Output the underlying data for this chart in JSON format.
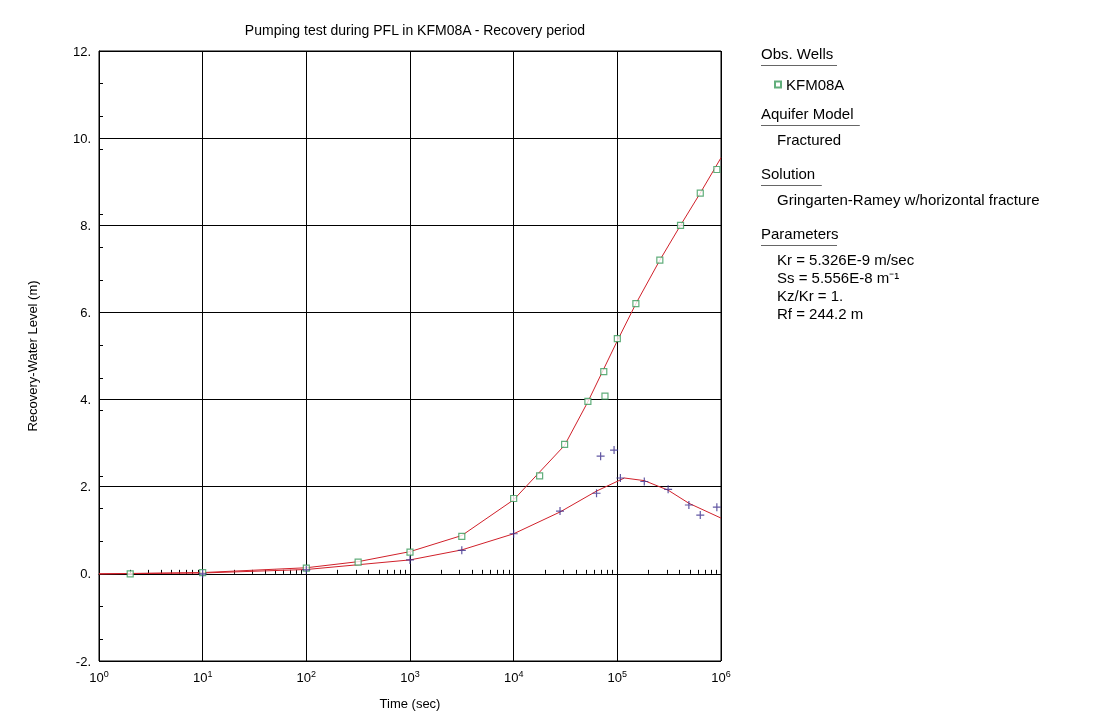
{
  "chart_data": {
    "type": "scatter",
    "title": "Pumping test during PFL in KFM08A - Recovery period",
    "xlabel": "Time (sec)",
    "ylabel": "Recovery-Water Level (m)",
    "legend_title": "Obs. Wells",
    "legend": "top right",
    "log": "x",
    "grid": true,
    "xlim": [
      1,
      1000000
    ],
    "xticks": [
      {
        "value": 1,
        "label": "10$^{0}$"
      },
      {
        "value": 10,
        "label": "10$^{1}$"
      },
      {
        "value": 100,
        "label": "10$^{2}$"
      },
      {
        "value": 1000,
        "label": "10$^{3}$"
      },
      {
        "value": 10000,
        "label": "10$^{4}$"
      },
      {
        "value": 100000,
        "label": "10$^{5}$"
      },
      {
        "value": 1000000,
        "label": "10$^{6}$"
      }
    ],
    "ylim": [
      -2,
      12
    ],
    "yticks": [
      {
        "value": -2,
        "label": "-2."
      },
      {
        "value": 0,
        "label": "0."
      },
      {
        "value": 2,
        "label": "2."
      },
      {
        "value": 4,
        "label": "4."
      },
      {
        "value": 6,
        "label": "6."
      },
      {
        "value": 8,
        "label": "8."
      },
      {
        "value": 10,
        "label": "10."
      },
      {
        "value": 12,
        "label": "12."
      }
    ],
    "series": [
      {
        "name": "KFM08A",
        "marker": "square",
        "color": "#3a9a5a",
        "x": [
          2,
          10,
          100,
          316,
          1000,
          3160,
          10000,
          17800,
          31000,
          52000,
          74000,
          76000,
          100000,
          151000,
          257000,
          407000,
          631000,
          912000
        ],
        "values": [
          0,
          0.03,
          0.13,
          0.27,
          0.5,
          0.86,
          1.73,
          2.25,
          2.97,
          3.96,
          4.64,
          4.08,
          5.4,
          6.2,
          7.2,
          8.0,
          8.74,
          9.28
        ]
      },
      {
        "marker": "cross",
        "color": "#3b2d8c",
        "x": [
          10,
          100,
          1000,
          3160,
          10000,
          28000,
          63000,
          69000,
          93000,
          107000,
          182000,
          309000,
          490000,
          631000,
          912000
        ],
        "values": [
          0,
          0.09,
          0.32,
          0.54,
          0.92,
          1.44,
          1.85,
          2.7,
          2.84,
          2.2,
          2.12,
          1.94,
          1.58,
          1.35,
          1.53
        ]
      },
      {
        "type": "line",
        "marker": "none",
        "color": "#d0202a",
        "x": [
          1,
          10,
          100,
          316,
          1000,
          3160,
          10000,
          31000,
          52000,
          100000,
          151000,
          257000,
          407000,
          631000,
          1000000
        ],
        "values": [
          0,
          0.03,
          0.14,
          0.28,
          0.51,
          0.88,
          1.7,
          2.95,
          3.95,
          5.35,
          6.2,
          7.2,
          8.0,
          8.74,
          9.55
        ]
      },
      {
        "type": "line",
        "marker": "none",
        "color": "#d0202a",
        "x": [
          1,
          10,
          100,
          1000,
          3160,
          10000,
          28000,
          63000,
          117000,
          182000,
          309000,
          490000,
          1000000
        ],
        "values": [
          0,
          0.02,
          0.1,
          0.32,
          0.55,
          0.92,
          1.42,
          1.9,
          2.2,
          2.14,
          1.92,
          1.62,
          1.28
        ]
      }
    ],
    "annotations": [
      "Aquifer Model",
      "Fractured",
      "Solution",
      "Gringarten-Ramey w/horizontal fracture",
      "Parameters",
      "Kr = 5.326E-9 m/sec",
      "Ss = 5.556E-8 m⁻¹",
      "Kz/Kr = 1.",
      "Rf = 244.2 m"
    ]
  }
}
